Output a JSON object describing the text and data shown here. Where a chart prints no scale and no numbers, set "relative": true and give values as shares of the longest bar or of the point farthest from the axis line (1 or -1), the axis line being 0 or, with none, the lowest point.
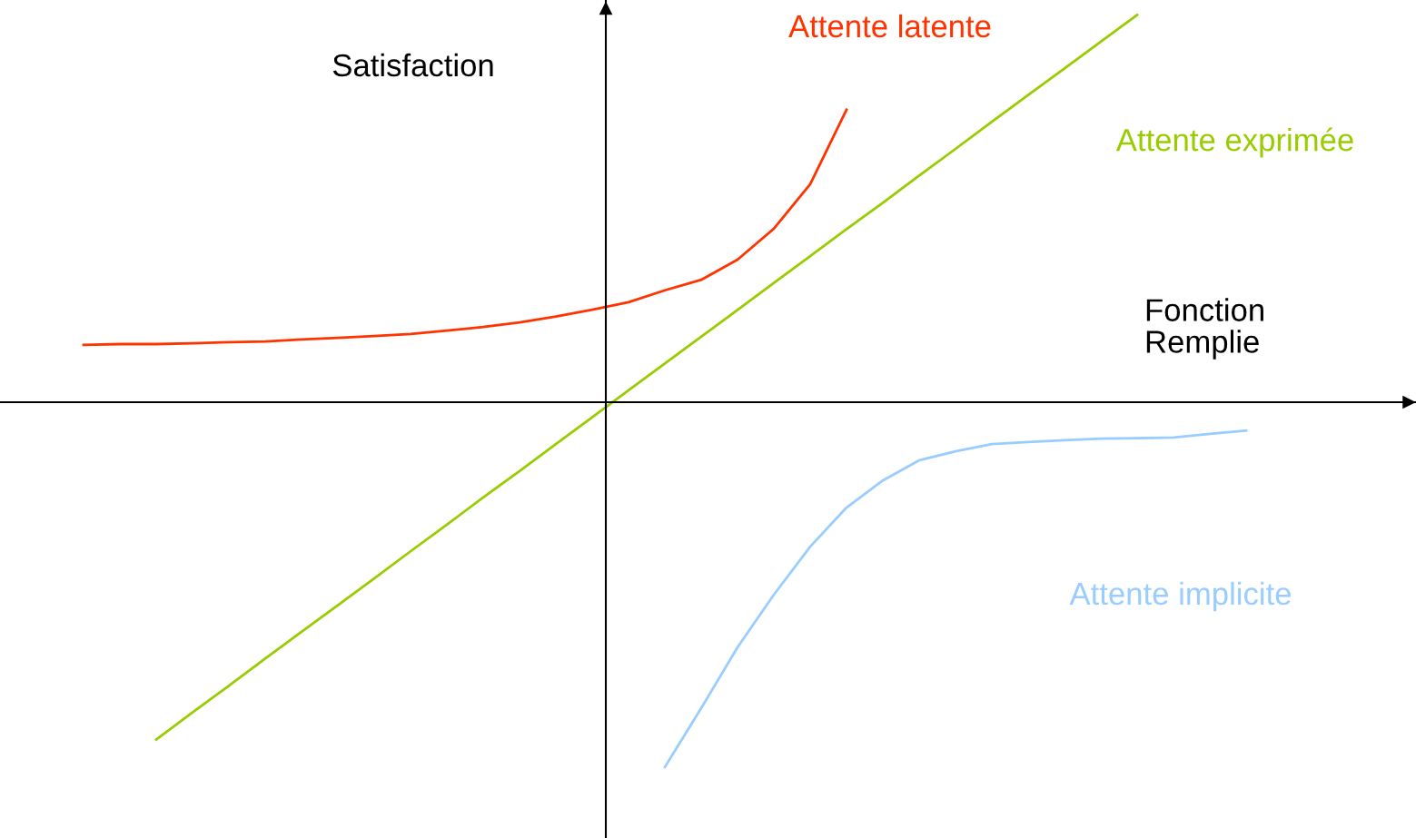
{
  "chart_data": {
    "type": "line",
    "relative": true,
    "xlabel": "Fonction\nRemplie",
    "ylabel": "Satisfaction",
    "marker": "none",
    "line_style": "solid",
    "categories": [
      null,
      null,
      null,
      null,
      null,
      null,
      null,
      null,
      null,
      null,
      null,
      null,
      null,
      null,
      null,
      null,
      null,
      null,
      null,
      null,
      null,
      null,
      null,
      null,
      null,
      null,
      null,
      null,
      null,
      null,
      null,
      null,
      null
    ],
    "series": [
      {
        "name": "Attente latente",
        "color": "#ff3300",
        "values": [
          0.148,
          0.15,
          0.15,
          0.152,
          0.155,
          0.157,
          0.162,
          0.166,
          0.171,
          0.176,
          0.185,
          0.194,
          0.206,
          0.221,
          0.239,
          0.258,
          0.289,
          0.316,
          0.368,
          0.448,
          0.563,
          0.755,
          null,
          null,
          null,
          null,
          null,
          null,
          null,
          null,
          null,
          null,
          null
        ]
      },
      {
        "name": "Attente exprimée",
        "color": "#99cc00",
        "values": [
          null,
          null,
          -0.871,
          -0.801,
          -0.732,
          -0.662,
          -0.593,
          -0.524,
          -0.455,
          -0.385,
          -0.316,
          -0.246,
          -0.178,
          -0.108,
          -0.039,
          0.031,
          0.1,
          0.169,
          0.238,
          0.308,
          0.377,
          0.447,
          0.515,
          0.585,
          0.654,
          0.724,
          0.793,
          0.862,
          0.931,
          1.0,
          null,
          null,
          null
        ]
      },
      {
        "name": "Attente implicite",
        "color": "#99ccff",
        "values": [
          null,
          null,
          null,
          null,
          null,
          null,
          null,
          null,
          null,
          null,
          null,
          null,
          null,
          null,
          null,
          null,
          -0.942,
          -0.79,
          -0.633,
          -0.497,
          -0.373,
          -0.272,
          -0.202,
          -0.15,
          -0.127,
          -0.108,
          -0.103,
          -0.098,
          -0.094,
          -0.093,
          -0.091,
          -0.082,
          -0.073
        ]
      }
    ]
  }
}
